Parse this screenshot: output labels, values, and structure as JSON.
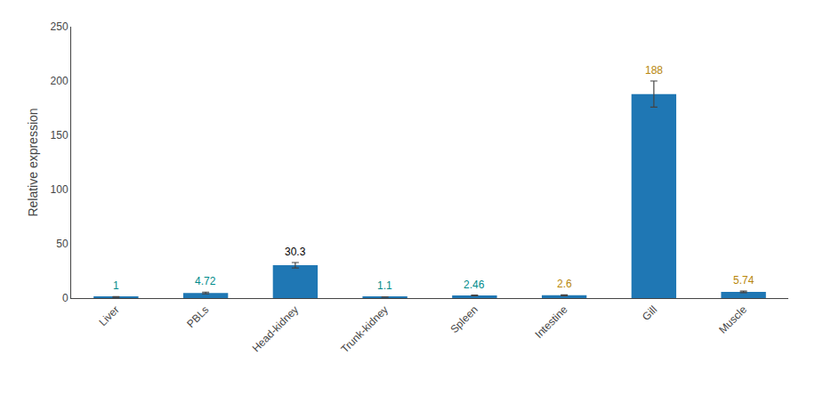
{
  "chart_data": {
    "type": "bar",
    "categories": [
      "Liver",
      "PBLs",
      "Head-kidney",
      "Trunk-kidney",
      "Spleen",
      "Intestine",
      "Gill",
      "Muscle"
    ],
    "values": [
      1.0,
      4.72,
      30.3,
      1.1,
      2.46,
      2.6,
      188.0,
      5.74
    ],
    "value_labels": [
      "1",
      "4.72",
      "30.3",
      "1.1",
      "2.46",
      "2.6",
      "188",
      "5.74"
    ],
    "label_colors": [
      "#008b8b",
      "#008b8b",
      "#000000",
      "#008b8b",
      "#008b8b",
      "#b8860b",
      "#b8860b",
      "#b8860b"
    ],
    "errors": [
      0.3,
      0.8,
      2.5,
      0.15,
      0.4,
      0.4,
      12.0,
      0.7
    ],
    "ylabel": "Relative expression",
    "ylim": [
      0,
      250
    ],
    "yticks": [
      0,
      50,
      100,
      150,
      200,
      250
    ],
    "data_labels": true,
    "grid": false
  }
}
